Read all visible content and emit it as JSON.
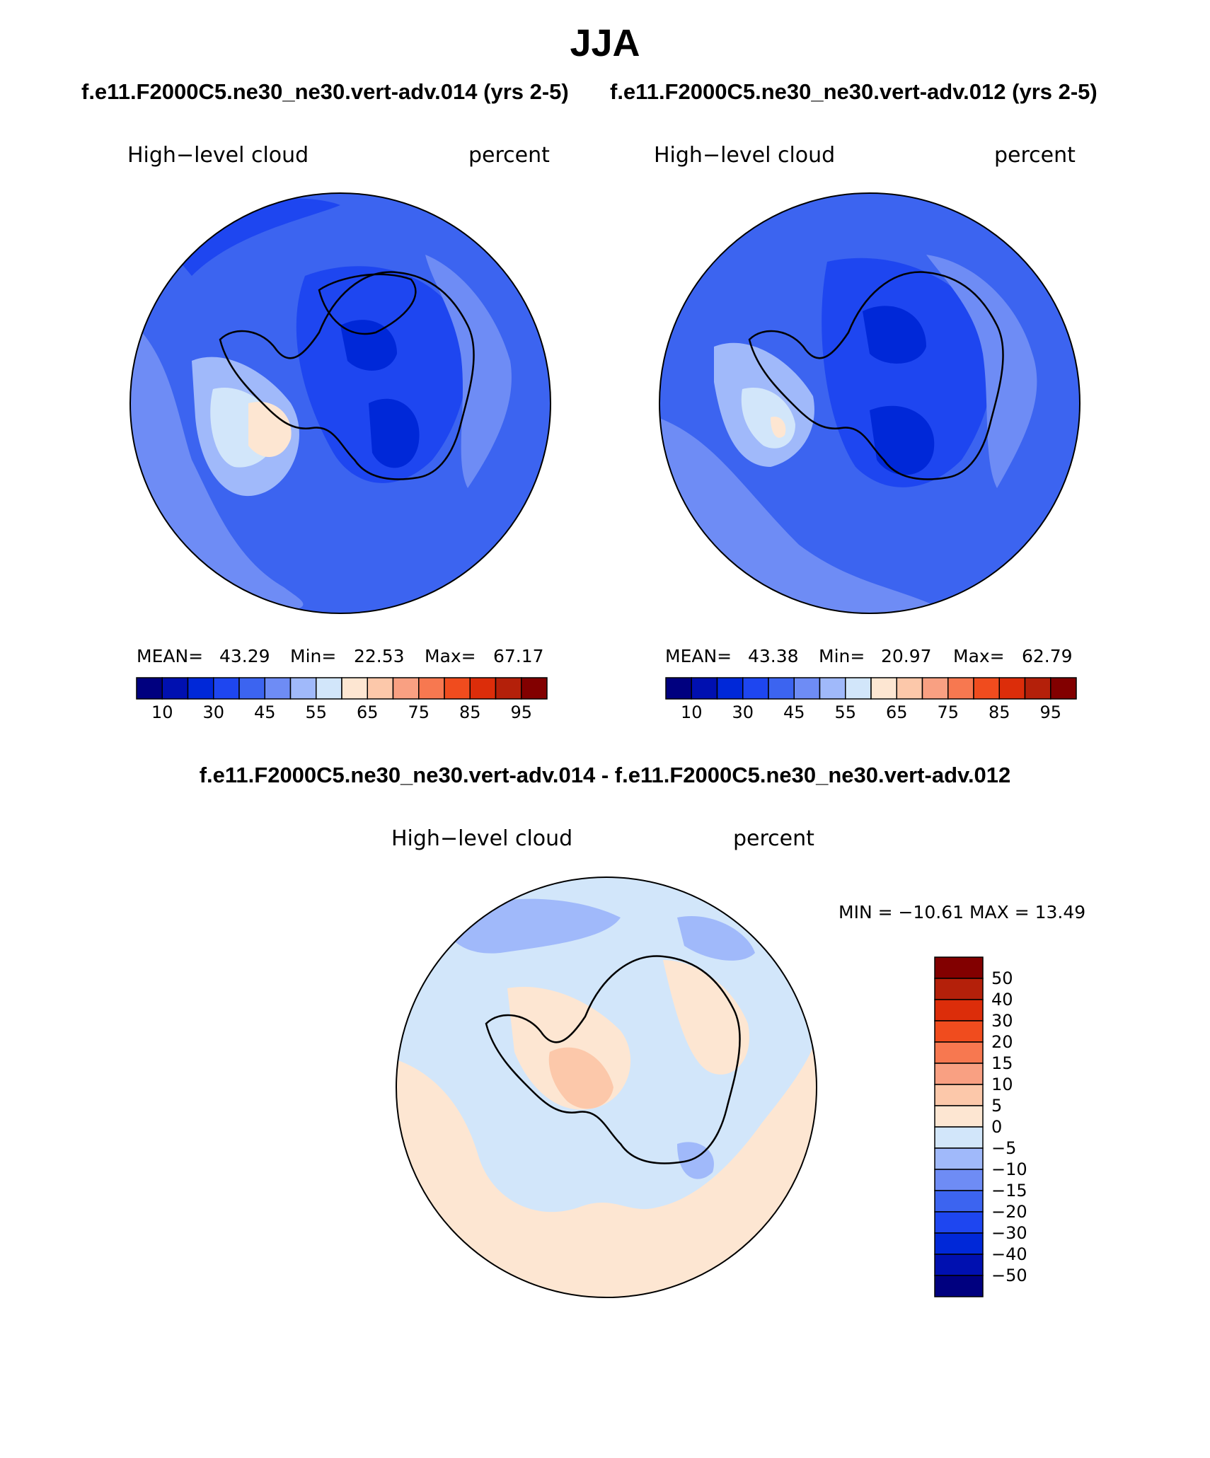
{
  "title": "JJA",
  "panels": {
    "left": {
      "run": "f.e11.F2000C5.ne30_ne30.vert-adv.014 (yrs 2-5)",
      "variable": "High−level cloud",
      "units": "percent",
      "mean_label": "MEAN=",
      "mean": "43.29",
      "min_label": "Min=",
      "min": "22.53",
      "max_label": "Max=",
      "max": "67.17"
    },
    "right": {
      "run": "f.e11.F2000C5.ne30_ne30.vert-adv.012 (yrs 2-5)",
      "variable": "High−level cloud",
      "units": "percent",
      "mean_label": "MEAN=",
      "mean": "43.38",
      "min_label": "Min=",
      "min": "20.97",
      "max_label": "Max=",
      "max": "62.79"
    },
    "diff": {
      "title": "f.e11.F2000C5.ne30_ne30.vert-adv.014 - f.e11.F2000C5.ne30_ne30.vert-adv.012",
      "variable": "High−level cloud",
      "units": "percent",
      "minmax": "MIN = −10.61  MAX =   13.49"
    }
  },
  "colorbar_horizontal": {
    "colors": [
      "#00007f",
      "#0010b0",
      "#0028d8",
      "#1e46f0",
      "#3c64f0",
      "#6e8cf5",
      "#a0b9fa",
      "#d2e6fa",
      "#fde6d2",
      "#fcc8aa",
      "#f9a082",
      "#f77850",
      "#f04c1e",
      "#dc2d0a",
      "#b4200a",
      "#820000"
    ],
    "labels": [
      "10",
      "30",
      "45",
      "55",
      "65",
      "75",
      "85",
      "95"
    ]
  },
  "colorbar_vertical": {
    "colors": [
      "#820000",
      "#b4200a",
      "#dc2d0a",
      "#f04c1e",
      "#f77850",
      "#f9a082",
      "#fcc8aa",
      "#fde6d2",
      "#d2e6fa",
      "#a0b9fa",
      "#6e8cf5",
      "#3c64f0",
      "#1e46f0",
      "#0028d8",
      "#0010b0",
      "#00007f"
    ],
    "labels": [
      "50",
      "40",
      "30",
      "20",
      "15",
      "10",
      "5",
      "0",
      "−5",
      "−10",
      "−15",
      "−20",
      "−30",
      "−40",
      "−50"
    ]
  }
}
